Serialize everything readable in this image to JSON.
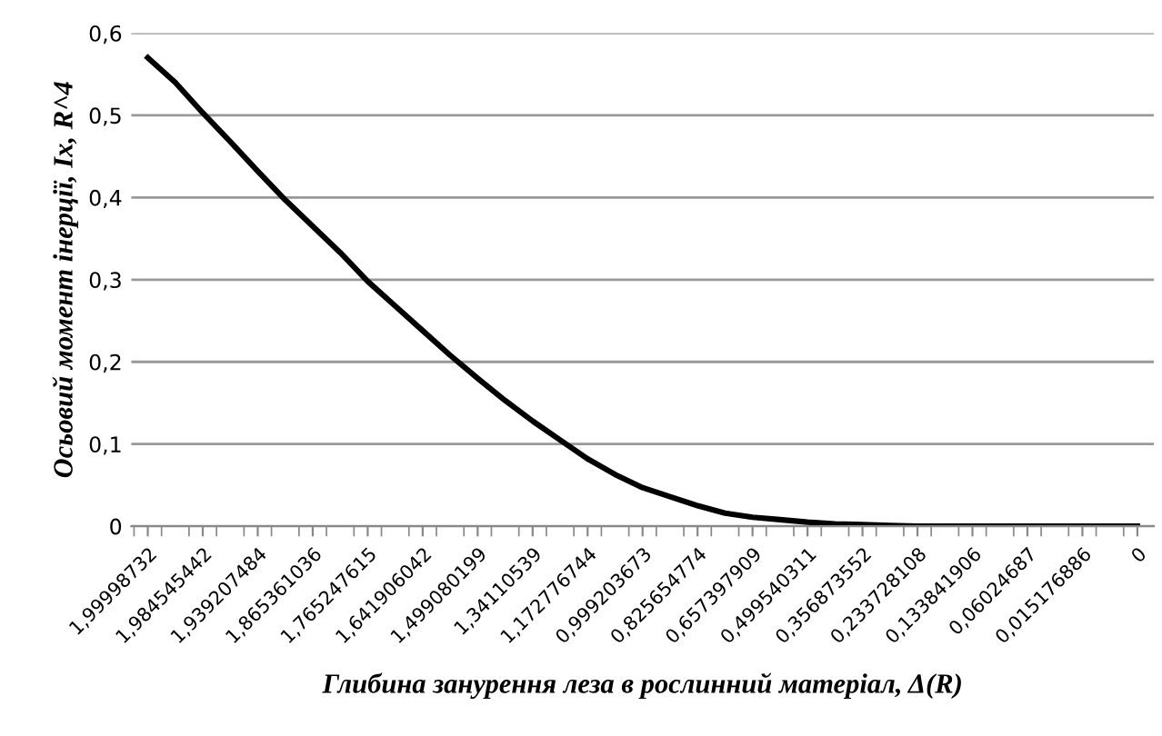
{
  "chart_data": {
    "type": "line",
    "xlabel": "Глибина занурення леза в рослинний матеріал, Δ(R)",
    "ylabel": "Осьовий момент інерції, Ix, R^4",
    "categories": [
      "1,99998732",
      null,
      "1,984545442",
      null,
      "1,939207484",
      null,
      "1,865361036",
      null,
      "1,765247615",
      null,
      "1,641906042",
      null,
      "1,499080199",
      null,
      "1,34110539",
      null,
      "1,172776744",
      null,
      "0,999203673",
      null,
      "0,825654774",
      null,
      "0,657397909",
      null,
      "0,499540311",
      null,
      "0,356873552",
      null,
      "0,233728108",
      null,
      "0,133841906",
      null,
      "0,06024687",
      null,
      "0,015176886",
      null,
      "0"
    ],
    "series": [
      {
        "color": "#000000",
        "values": [
          0.57,
          0.54,
          0.503,
          0.468,
          0.432,
          0.397,
          0.365,
          0.333,
          0.298,
          0.268,
          0.238,
          0.208,
          0.18,
          0.153,
          0.128,
          0.105,
          0.082,
          0.063,
          0.047,
          0.036,
          0.025,
          0.016,
          0.011,
          0.008,
          0.005,
          0.003,
          0.002,
          0.001,
          0,
          0,
          0,
          0,
          0,
          0,
          0,
          0,
          0
        ]
      }
    ],
    "ylim": [
      0,
      0.6
    ],
    "yticks": [
      {
        "value": 0,
        "label": "0"
      },
      {
        "value": 0.1,
        "label": "0,1"
      },
      {
        "value": 0.2,
        "label": "0,2"
      },
      {
        "value": 0.3,
        "label": "0,3"
      },
      {
        "value": 0.4,
        "label": "0,4"
      },
      {
        "value": 0.5,
        "label": "0,5"
      },
      {
        "value": 0.6,
        "label": "0,6"
      }
    ],
    "grid": "y",
    "legend": false,
    "marker": "none",
    "line_style": "solid"
  }
}
